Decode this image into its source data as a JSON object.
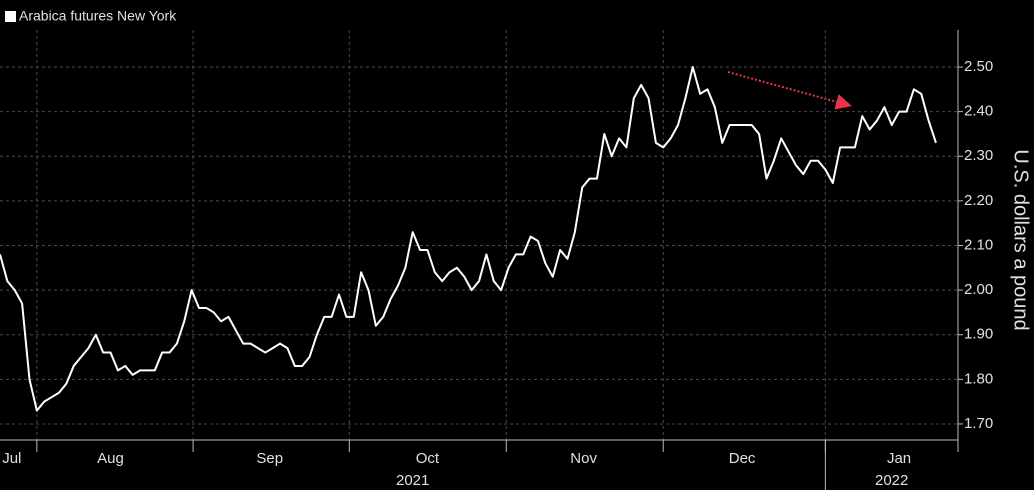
{
  "chart_data": {
    "type": "line",
    "legend": "Arabica futures New York",
    "y_axis_label": "U.S. dollars a pound",
    "series": [
      {
        "name": "Arabica futures New York",
        "color": "#ffffff",
        "values": [
          2.08,
          2.02,
          2.0,
          1.97,
          1.8,
          1.73,
          1.75,
          1.76,
          1.77,
          1.79,
          1.83,
          1.85,
          1.87,
          1.9,
          1.86,
          1.86,
          1.82,
          1.83,
          1.81,
          1.82,
          1.82,
          1.82,
          1.86,
          1.86,
          1.88,
          1.93,
          2.0,
          1.96,
          1.96,
          1.95,
          1.93,
          1.94,
          1.91,
          1.88,
          1.88,
          1.87,
          1.86,
          1.87,
          1.88,
          1.87,
          1.83,
          1.83,
          1.85,
          1.9,
          1.94,
          1.94,
          1.99,
          1.94,
          1.94,
          2.04,
          2.0,
          1.92,
          1.94,
          1.98,
          2.01,
          2.05,
          2.13,
          2.09,
          2.09,
          2.04,
          2.02,
          2.04,
          2.05,
          2.03,
          2.0,
          2.02,
          2.08,
          2.02,
          2.0,
          2.05,
          2.08,
          2.08,
          2.12,
          2.11,
          2.06,
          2.03,
          2.09,
          2.07,
          2.13,
          2.23,
          2.25,
          2.25,
          2.35,
          2.3,
          2.34,
          2.32,
          2.43,
          2.46,
          2.43,
          2.33,
          2.32,
          2.34,
          2.37,
          2.43,
          2.5,
          2.44,
          2.45,
          2.41,
          2.33,
          2.37,
          2.37,
          2.37,
          2.37,
          2.35,
          2.25,
          2.29,
          2.34,
          2.31,
          2.28,
          2.26,
          2.29,
          2.29,
          2.27,
          2.24,
          2.32,
          2.32,
          2.32,
          2.39,
          2.36,
          2.38,
          2.41,
          2.37,
          2.4,
          2.4,
          2.45,
          2.44,
          2.38,
          2.33
        ]
      }
    ],
    "xlim": [
      0,
      130
    ],
    "xticks": [
      {
        "value": 1.6,
        "label": "Jul"
      },
      {
        "value": 15,
        "label": "Aug"
      },
      {
        "value": 36.6,
        "label": "Sep"
      },
      {
        "value": 58,
        "label": "Oct"
      },
      {
        "value": 79.2,
        "label": "Nov"
      },
      {
        "value": 100.7,
        "label": "Dec"
      },
      {
        "value": 122,
        "label": "Jan"
      }
    ],
    "xgrid": [
      5,
      26.2,
      47.4,
      68.7,
      90,
      112
    ],
    "year_labels": [
      {
        "value": 56,
        "label": "2021"
      },
      {
        "value": 121,
        "label": "2022"
      }
    ],
    "year_divider": 112,
    "ylim": [
      1.664,
      2.583
    ],
    "yticks": [
      {
        "value": 1.7,
        "label": "1.70"
      },
      {
        "value": 1.8,
        "label": "1.80"
      },
      {
        "value": 1.9,
        "label": "1.90"
      },
      {
        "value": 2.0,
        "label": "2.00"
      },
      {
        "value": 2.1,
        "label": "2.10"
      },
      {
        "value": 2.2,
        "label": "2.20"
      },
      {
        "value": 2.3,
        "label": "2.30"
      },
      {
        "value": 2.4,
        "label": "2.40"
      },
      {
        "value": 2.5,
        "label": "2.50"
      }
    ],
    "grid": true
  }
}
